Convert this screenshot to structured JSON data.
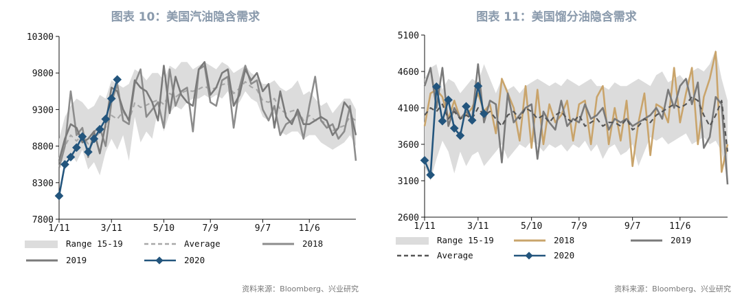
{
  "chart_data": [
    {
      "type": "line",
      "title": "图表 10：美国汽油隐含需求",
      "x_tick_labels": [
        "1/11",
        "3/11",
        "5/10",
        "7/9",
        "9/7",
        "11/6"
      ],
      "ylim": [
        7800,
        10300
      ],
      "y_ticks": [
        7800,
        8300,
        8800,
        9300,
        9800,
        10300
      ],
      "n_weeks": 52,
      "range": {
        "name": "Range 15-19",
        "low": [
          8600,
          8580,
          8700,
          8580,
          8750,
          8480,
          8580,
          8400,
          8720,
          8900,
          8750,
          8950,
          8600,
          9200,
          8850,
          9000,
          8900,
          9300,
          9000,
          9250,
          9350,
          9300,
          9400,
          9450,
          9450,
          9500,
          9450,
          9500,
          9450,
          9550,
          9350,
          9400,
          9550,
          9450,
          9400,
          9200,
          9150,
          9250,
          9000,
          8950,
          9000,
          9000,
          8900,
          8950,
          8950,
          8850,
          8800,
          8750,
          8800,
          8850,
          8950,
          8800
        ],
        "high": [
          8900,
          9200,
          9350,
          9450,
          9400,
          9300,
          9350,
          9500,
          9450,
          9700,
          9650,
          9600,
          9650,
          9850,
          9800,
          9700,
          9800,
          9800,
          9700,
          9900,
          9850,
          9950,
          9950,
          9850,
          9900,
          9950,
          9900,
          9850,
          9950,
          9900,
          9800,
          9850,
          9900,
          9800,
          9750,
          9650,
          9650,
          9700,
          9600,
          9550,
          9600,
          9700,
          9500,
          9550,
          9450,
          9350,
          9400,
          9250,
          9350,
          9450,
          9450,
          9300
        ]
      },
      "series": [
        {
          "name": "Average",
          "style": "dashed",
          "color": "#a8a8a8",
          "values": [
            8620,
            8800,
            8950,
            8870,
            8950,
            8830,
            8900,
            8990,
            9060,
            9220,
            9170,
            9270,
            9150,
            9390,
            9330,
            9360,
            9400,
            9430,
            9370,
            9520,
            9470,
            9530,
            9560,
            9550,
            9580,
            9620,
            9570,
            9600,
            9640,
            9660,
            9520,
            9590,
            9680,
            9610,
            9570,
            9420,
            9400,
            9450,
            9300,
            9250,
            9280,
            9300,
            9150,
            9220,
            9150,
            9150,
            9100,
            9010,
            9050,
            9080,
            9200,
            9150
          ]
        },
        {
          "name": "2018",
          "style": "solid",
          "color": "#8c8c8c",
          "values": [
            8500,
            8800,
            9550,
            8950,
            9050,
            8650,
            9000,
            9050,
            8800,
            9400,
            9650,
            9150,
            9100,
            9650,
            9850,
            9200,
            9300,
            9400,
            9050,
            9850,
            9350,
            9550,
            9600,
            9000,
            9850,
            9900,
            9400,
            9350,
            9700,
            9750,
            9050,
            9600,
            9900,
            9650,
            9700,
            9300,
            9150,
            9350,
            8950,
            9100,
            9150,
            9250,
            8900,
            9350,
            9750,
            9150,
            9050,
            9100,
            8900,
            9000,
            9350,
            8600
          ]
        },
        {
          "name": "2019",
          "style": "solid",
          "color": "#7a7a7a",
          "values": [
            8600,
            8900,
            9100,
            9050,
            8850,
            8900,
            9000,
            8700,
            9100,
            9600,
            9550,
            9300,
            9150,
            9700,
            9600,
            9550,
            9400,
            9150,
            9900,
            9250,
            9750,
            9500,
            9400,
            9350,
            9850,
            9950,
            9500,
            9600,
            9800,
            9850,
            9350,
            9500,
            9850,
            9700,
            9800,
            9550,
            9650,
            9050,
            9550,
            9200,
            9100,
            9300,
            9100,
            9100,
            9150,
            9200,
            9150,
            8950,
            9050,
            9400,
            9300,
            8950
          ]
        },
        {
          "name": "2020",
          "style": "marker",
          "color": "#23557d",
          "values": [
            8120,
            8550,
            8650,
            8780,
            8930,
            8720,
            8900,
            9030,
            9170,
            9450,
            9710
          ]
        }
      ]
    },
    {
      "type": "line",
      "title": "图表 11：美国馏分油隐含需求",
      "x_tick_labels": [
        "1/11",
        "3/11",
        "5/10",
        "7/9",
        "9/7",
        "11/6"
      ],
      "ylim": [
        2600,
        5100
      ],
      "y_ticks": [
        2600,
        3100,
        3600,
        4100,
        4600,
        5100
      ],
      "n_weeks": 52,
      "range": {
        "name": "Range 15-19",
        "low": [
          3300,
          3100,
          3400,
          3650,
          3500,
          3200,
          3500,
          3300,
          3450,
          3500,
          3300,
          3400,
          3500,
          3600,
          3400,
          3500,
          3600,
          3550,
          3650,
          3600,
          3500,
          3600,
          3550,
          3600,
          3500,
          3600,
          3550,
          3650,
          3500,
          3600,
          3400,
          3550,
          3600,
          3450,
          3500,
          3600,
          3300,
          3500,
          3700,
          3650,
          3700,
          3600,
          3650,
          3700,
          3750,
          3600,
          3650,
          3700,
          3600,
          3650,
          3500,
          3100
        ],
        "high": [
          4500,
          4650,
          4700,
          4350,
          4500,
          4450,
          4300,
          4400,
          4500,
          4450,
          4700,
          4500,
          4300,
          4500,
          4350,
          4400,
          4300,
          4400,
          4450,
          4500,
          4450,
          4400,
          4450,
          4400,
          4500,
          4450,
          4400,
          4450,
          4500,
          4400,
          4400,
          4350,
          4450,
          4400,
          4400,
          4450,
          4500,
          4450,
          4400,
          4550,
          4600,
          4450,
          4500,
          4550,
          4450,
          4600,
          4650,
          4600,
          4700,
          4900,
          4500,
          4200
        ]
      },
      "series": [
        {
          "name": "2018",
          "style": "solid",
          "color": "#c9a46b",
          "values": [
            3850,
            4300,
            4350,
            4250,
            3950,
            4200,
            3950,
            4000,
            4100,
            4300,
            4050,
            4150,
            3750,
            4500,
            4300,
            4100,
            3650,
            4400,
            3550,
            4350,
            3600,
            4150,
            3900,
            4000,
            4200,
            3650,
            4150,
            4200,
            3600,
            4250,
            4400,
            3600,
            4100,
            3650,
            4200,
            3300,
            3900,
            4300,
            3450,
            4150,
            4100,
            3900,
            4650,
            3900,
            4300,
            4650,
            3600,
            4250,
            4500,
            4870,
            3220,
            3600
          ]
        },
        {
          "name": "2019",
          "style": "solid",
          "color": "#7a7a7a",
          "values": [
            4400,
            4650,
            4100,
            4650,
            3850,
            4100,
            3950,
            4050,
            3950,
            4700,
            3900,
            4200,
            4150,
            3350,
            4300,
            3900,
            4000,
            4100,
            4150,
            3400,
            4050,
            3900,
            3800,
            4200,
            3850,
            3950,
            3900,
            4150,
            3950,
            4000,
            4100,
            3800,
            3950,
            3900,
            3950,
            3850,
            3900,
            3950,
            4000,
            4100,
            3950,
            4350,
            4100,
            4400,
            4500,
            4150,
            4450,
            3550,
            3700,
            4250,
            4150,
            3050
          ]
        },
        {
          "name": "Average",
          "style": "dashed",
          "color": "#555555",
          "values": [
            4000,
            4100,
            4050,
            4150,
            3950,
            4050,
            3950,
            4000,
            3950,
            4100,
            4000,
            4050,
            3950,
            3850,
            4000,
            4050,
            3950,
            4100,
            4050,
            3950,
            4000,
            3900,
            4000,
            4050,
            3950,
            3900,
            4000,
            3850,
            3900,
            3950,
            3850,
            3900,
            3900,
            3850,
            3950,
            3800,
            3850,
            3950,
            3900,
            4000,
            4050,
            4100,
            4150,
            4100,
            4150,
            4250,
            4200,
            4000,
            3850,
            4000,
            4200,
            3500
          ]
        },
        {
          "name": "2020",
          "style": "marker",
          "color": "#23557d",
          "values": [
            3380,
            3180,
            4390,
            3920,
            4210,
            3820,
            3720,
            4120,
            3930,
            4400,
            4020
          ]
        }
      ]
    }
  ],
  "legend": {
    "left": {
      "range": "Range 15-19",
      "average": "Average",
      "s2018": "2018",
      "s2019": "2019",
      "s2020": "2020"
    },
    "right": {
      "range": "Range 15-19",
      "s2018": "2018",
      "s2019": "2019",
      "average": "Average",
      "s2020": "2020"
    }
  },
  "sources": {
    "left": "资料来源：Bloomberg、兴业研究",
    "right": "资料来源：Bloomberg、兴业研究"
  },
  "colors": {
    "range_fill": "#dcdcdc",
    "title": "#8a9aac",
    "series_2020": "#23557d",
    "series_2018_right": "#c9a46b",
    "series_grey": "#7a7a7a"
  }
}
